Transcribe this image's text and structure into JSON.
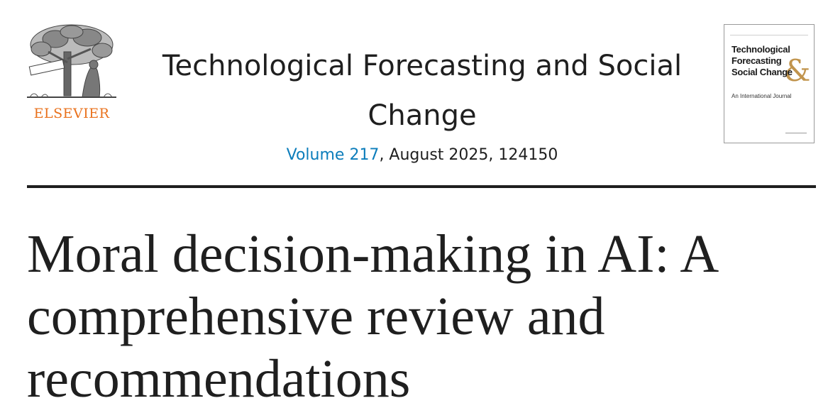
{
  "publisher": {
    "name": "ELSEVIER",
    "logo_motto": "NON SOLUS",
    "brand_color": "#e9711c"
  },
  "journal": {
    "title": "Technological Forecasting and Social Change",
    "volume_link": "Volume 217",
    "issue_details": ", August 2025, 124150",
    "link_color": "#0c7dbb"
  },
  "cover": {
    "title_line1": "Technological",
    "title_line2": "Forecasting",
    "title_line3": "Social Change",
    "ampersand": "&",
    "subtitle": "An International Journal"
  },
  "article": {
    "title": "Moral decision-making in AI: A comprehensive review and recommendations"
  }
}
